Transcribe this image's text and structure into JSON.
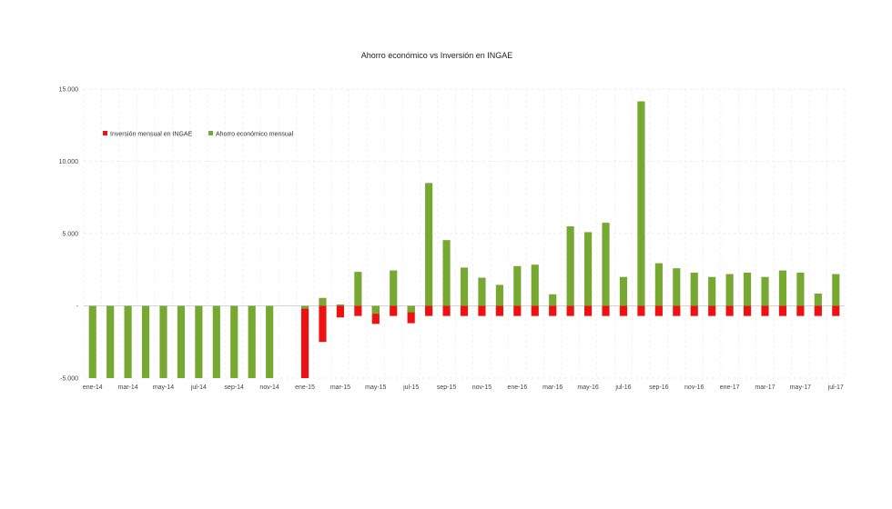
{
  "chart_data": {
    "type": "bar",
    "title": "Ahorro económico vs Inversión en INGAE",
    "xlabel": "",
    "ylabel": "",
    "ylim": [
      -5000,
      15000
    ],
    "grid": true,
    "legend_position": "top-left",
    "y_ticks": [
      {
        "value": 15000,
        "label": "15.000"
      },
      {
        "value": 10000,
        "label": "10.000"
      },
      {
        "value": 5000,
        "label": "5.000"
      },
      {
        "value": 0,
        "label": "-"
      },
      {
        "value": -5000,
        "label": "-5.000"
      }
    ],
    "x_tick_labels": [
      "ene-14",
      "mar-14",
      "may-14",
      "jul-14",
      "sep-14",
      "nov-14",
      "ene-15",
      "mar-15",
      "may-15",
      "jul-15",
      "sep-15",
      "nov-15",
      "ene-16",
      "mar-16",
      "may-16",
      "jul-16",
      "sep-16",
      "nov-16",
      "ene-17",
      "mar-17",
      "may-17",
      "jul-17"
    ],
    "categories": [
      "ene-14",
      "feb-14",
      "mar-14",
      "abr-14",
      "may-14",
      "jun-14",
      "jul-14",
      "ago-14",
      "sep-14",
      "oct-14",
      "nov-14",
      "dic-14",
      "ene-15",
      "feb-15",
      "mar-15",
      "abr-15",
      "may-15",
      "jun-15",
      "jul-15",
      "ago-15",
      "sep-15",
      "oct-15",
      "nov-15",
      "dic-15",
      "ene-16",
      "feb-16",
      "mar-16",
      "abr-16",
      "may-16",
      "jun-16",
      "jul-16",
      "ago-16",
      "sep-16",
      "oct-16",
      "nov-16",
      "dic-16",
      "ene-17",
      "feb-17",
      "mar-17",
      "abr-17",
      "may-17",
      "jun-17",
      "jul-17"
    ],
    "series": [
      {
        "name": "Inversión mensual en INGAE",
        "color": "#ee1111",
        "values": [
          0,
          0,
          0,
          0,
          0,
          0,
          0,
          0,
          0,
          0,
          0,
          0,
          -5000,
          -2500,
          -800,
          -700,
          -1250,
          -700,
          -1200,
          -700,
          -700,
          -700,
          -700,
          -700,
          -700,
          -700,
          -700,
          -700,
          -700,
          -700,
          -700,
          -700,
          -700,
          -700,
          -700,
          -700,
          -700,
          -700,
          -700,
          -700,
          -700,
          -700,
          -700
        ]
      },
      {
        "name": "Ahorro económico mensual",
        "color": "#77a832",
        "values": [
          -5000,
          -5000,
          -5000,
          -5000,
          -5000,
          -5000,
          -5000,
          -5000,
          -5000,
          -5000,
          -5000,
          0,
          -200,
          550,
          100,
          2350,
          -550,
          2450,
          -450,
          8500,
          4550,
          2650,
          1950,
          1450,
          2750,
          2850,
          800,
          5500,
          5100,
          5750,
          2000,
          14150,
          2950,
          2600,
          2300,
          2000,
          2200,
          2300,
          2000,
          2450,
          2300,
          850,
          2200
        ]
      }
    ]
  }
}
